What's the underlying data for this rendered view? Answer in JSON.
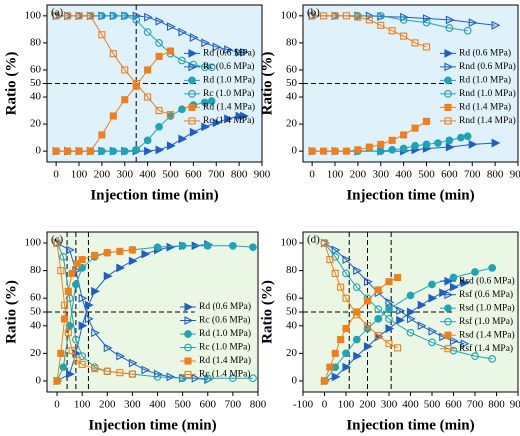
{
  "chart_data": [
    {
      "type": "line",
      "label": "(a)",
      "x_label": "Injection time (min)",
      "y_label": "Ratio (%)",
      "background": "#dff1fb",
      "xlim": [
        -40,
        900
      ],
      "ylim": [
        -8,
        108
      ],
      "xticks": [
        0,
        100,
        200,
        300,
        400,
        500,
        600,
        700,
        800,
        900
      ],
      "yticks": [
        0,
        20,
        40,
        50,
        60,
        80,
        100
      ],
      "vlines": [
        350
      ],
      "hline": 50,
      "legend": "center right",
      "series": [
        {
          "name": "Rd (0.6 MPa)",
          "color": "#1f5fc4",
          "marker": "triangle",
          "filled": true,
          "x": [
            0,
            50,
            100,
            150,
            200,
            250,
            300,
            350,
            400,
            450,
            500,
            550,
            600,
            650,
            700,
            750,
            800,
            820
          ],
          "values": [
            0,
            0,
            0,
            0,
            0,
            0,
            0,
            0,
            0,
            1,
            4,
            9,
            14,
            18,
            21,
            24,
            26,
            26
          ]
        },
        {
          "name": "Rc (0.6 MPa)",
          "color": "#1f5fc4",
          "marker": "triangle",
          "filled": false,
          "x": [
            0,
            50,
            100,
            150,
            200,
            250,
            300,
            350,
            400,
            450,
            500,
            550,
            600,
            650,
            700,
            750,
            800,
            820
          ],
          "values": [
            100,
            100,
            100,
            100,
            100,
            100,
            100,
            100,
            99,
            96,
            92,
            88,
            84,
            80,
            77,
            75,
            73,
            73
          ]
        },
        {
          "name": "Rd (1.0 MPa)",
          "color": "#1fa3b5",
          "marker": "circle",
          "filled": true,
          "x": [
            0,
            50,
            100,
            150,
            200,
            250,
            300,
            350,
            400,
            450,
            500,
            550,
            600,
            650,
            680
          ],
          "values": [
            0,
            0,
            0,
            0,
            0,
            0,
            0,
            1,
            8,
            18,
            26,
            31,
            34,
            36,
            37
          ]
        },
        {
          "name": "Rc (1.0 MPa)",
          "color": "#1fa3b5",
          "marker": "circle",
          "filled": false,
          "x": [
            0,
            50,
            100,
            150,
            200,
            250,
            300,
            350,
            400,
            450,
            500,
            550,
            600,
            650,
            680
          ],
          "values": [
            100,
            100,
            100,
            100,
            100,
            100,
            100,
            97,
            88,
            80,
            72,
            67,
            64,
            62,
            62
          ]
        },
        {
          "name": "Rd (1.4 MPa)",
          "color": "#f07f1a",
          "marker": "square",
          "filled": true,
          "x": [
            0,
            50,
            100,
            150,
            200,
            250,
            300,
            350,
            400,
            450,
            500
          ],
          "values": [
            0,
            0,
            0,
            0,
            12,
            26,
            38,
            48,
            60,
            70,
            74
          ]
        },
        {
          "name": "Rc (1.4 MPa)",
          "color": "#f07f1a",
          "marker": "square",
          "filled": false,
          "x": [
            0,
            50,
            100,
            150,
            200,
            250,
            300,
            350,
            400,
            450,
            500
          ],
          "values": [
            100,
            100,
            100,
            100,
            86,
            72,
            60,
            50,
            40,
            30,
            27
          ]
        }
      ]
    },
    {
      "type": "line",
      "label": "(b)",
      "x_label": "Injection time (min)",
      "y_label": "Ratio (%)",
      "background": "#dff1fb",
      "xlim": [
        -40,
        900
      ],
      "ylim": [
        -8,
        108
      ],
      "xticks": [
        0,
        100,
        200,
        300,
        400,
        500,
        600,
        700,
        800,
        900
      ],
      "yticks": [
        0,
        20,
        40,
        50,
        60,
        80,
        100
      ],
      "hline": 50,
      "legend": "center right",
      "series": [
        {
          "name": "Rd (0.6 MPa)",
          "color": "#1f5fc4",
          "marker": "triangle",
          "filled": true,
          "x": [
            0,
            100,
            200,
            300,
            400,
            450,
            500,
            600,
            700,
            800
          ],
          "values": [
            0,
            0,
            0,
            0,
            0,
            1,
            2,
            3,
            5,
            6
          ]
        },
        {
          "name": "Rnd (0.6 MPa)",
          "color": "#1f5fc4",
          "marker": "triangle",
          "filled": false,
          "x": [
            0,
            100,
            200,
            250,
            300,
            400,
            500,
            600,
            700,
            800
          ],
          "values": [
            100,
            100,
            100,
            100,
            99.5,
            99,
            98,
            97,
            95,
            93
          ]
        },
        {
          "name": "Rd (1.0 MPa)",
          "color": "#1fa3b5",
          "marker": "circle",
          "filled": true,
          "x": [
            0,
            100,
            200,
            300,
            350,
            400,
            450,
            500,
            550,
            600,
            650,
            680
          ],
          "values": [
            0,
            0,
            0,
            0,
            1,
            2,
            4,
            5,
            6,
            8,
            10,
            11
          ]
        },
        {
          "name": "Rnd (1.0 MPa)",
          "color": "#1fa3b5",
          "marker": "circle",
          "filled": false,
          "x": [
            0,
            100,
            200,
            300,
            400,
            500,
            600,
            680
          ],
          "values": [
            100,
            100,
            100,
            100,
            97,
            95,
            91,
            89
          ]
        },
        {
          "name": "Rd (1.4 MPa)",
          "color": "#f07f1a",
          "marker": "square",
          "filled": true,
          "x": [
            0,
            50,
            100,
            150,
            200,
            250,
            300,
            350,
            400,
            450,
            500
          ],
          "values": [
            0,
            0,
            0,
            0,
            1,
            3,
            5,
            8,
            12,
            17,
            22
          ]
        },
        {
          "name": "Rnd (1.4 MPa)",
          "color": "#f07f1a",
          "marker": "square",
          "filled": false,
          "x": [
            0,
            50,
            100,
            150,
            200,
            250,
            300,
            350,
            400,
            450,
            500
          ],
          "values": [
            100,
            100,
            100,
            100,
            99,
            97,
            93,
            89,
            85,
            80,
            77
          ]
        }
      ]
    },
    {
      "type": "line",
      "label": "(c)",
      "x_label": "Injection time (min)",
      "y_label": "Ratio (%)",
      "background": "#eaf7e4",
      "xlim": [
        -40,
        800
      ],
      "ylim": [
        -8,
        108
      ],
      "xticks": [
        0,
        100,
        200,
        300,
        400,
        500,
        600,
        700,
        800
      ],
      "yticks": [
        0,
        20,
        40,
        50,
        60,
        80,
        100
      ],
      "vlines": [
        40,
        75,
        125
      ],
      "hline": 50,
      "legend": "lower right",
      "series": [
        {
          "name": "Rd (0.6 MPa)",
          "color": "#1f5fc4",
          "marker": "triangle",
          "filled": true,
          "x": [
            0,
            50,
            75,
            100,
            125,
            150,
            200,
            250,
            300,
            350,
            400,
            450,
            500,
            550,
            600
          ],
          "values": [
            0,
            5,
            20,
            40,
            55,
            65,
            76,
            82,
            87,
            92,
            95,
            97,
            98,
            98,
            99
          ]
        },
        {
          "name": "Rc (0.6 MPa)",
          "color": "#1f5fc4",
          "marker": "triangle",
          "filled": false,
          "x": [
            0,
            50,
            75,
            100,
            125,
            150,
            200,
            250,
            300,
            350,
            400,
            450,
            500,
            550,
            600
          ],
          "values": [
            100,
            95,
            80,
            60,
            45,
            35,
            24,
            18,
            13,
            8,
            5,
            3,
            2,
            2,
            1
          ]
        },
        {
          "name": "Rd (1.0 MPa)",
          "color": "#1fa3b5",
          "marker": "circle",
          "filled": true,
          "x": [
            0,
            25,
            50,
            75,
            100,
            150,
            200,
            300,
            400,
            500,
            600,
            700,
            780
          ],
          "values": [
            0,
            10,
            40,
            70,
            82,
            90,
            93,
            95,
            97,
            98,
            98,
            98,
            97
          ]
        },
        {
          "name": "Rc (1.0 MPa)",
          "color": "#1fa3b5",
          "marker": "circle",
          "filled": false,
          "x": [
            0,
            25,
            50,
            75,
            100,
            150,
            200,
            300,
            400,
            500,
            600,
            700,
            780
          ],
          "values": [
            100,
            90,
            60,
            30,
            18,
            10,
            7,
            5,
            3,
            2,
            2,
            2,
            2
          ]
        },
        {
          "name": "Rd (1.4 MPa)",
          "color": "#f07f1a",
          "marker": "square",
          "filled": true,
          "x": [
            0,
            15,
            30,
            45,
            60,
            80,
            100,
            150,
            200,
            250,
            300
          ],
          "values": [
            0,
            20,
            45,
            65,
            78,
            85,
            88,
            91,
            93,
            94,
            95
          ]
        },
        {
          "name": "Rc (1.4 MPa)",
          "color": "#f07f1a",
          "marker": "square",
          "filled": false,
          "x": [
            0,
            15,
            30,
            45,
            60,
            80,
            100,
            150,
            200,
            250,
            300
          ],
          "values": [
            100,
            80,
            55,
            35,
            22,
            15,
            12,
            9,
            7,
            6,
            5
          ]
        }
      ]
    },
    {
      "type": "line",
      "label": "(d)",
      "x_label": "Injection time (min)",
      "y_label": "Ratio (%)",
      "background": "#eaf7e4",
      "xlim": [
        -100,
        900
      ],
      "ylim": [
        -8,
        108
      ],
      "xticks": [
        -100,
        0,
        100,
        200,
        300,
        400,
        500,
        600,
        700,
        800,
        900
      ],
      "yticks": [
        0,
        20,
        40,
        50,
        60,
        80,
        100
      ],
      "vlines": [
        115,
        200,
        310
      ],
      "hline": 50,
      "legend": "center right",
      "series": [
        {
          "name": "Rsd (0.6 MPa)",
          "color": "#1f5fc4",
          "marker": "triangle",
          "filled": true,
          "x": [
            0,
            50,
            100,
            150,
            200,
            250,
            300,
            350,
            400,
            450,
            500,
            550,
            600,
            650
          ],
          "values": [
            0,
            3,
            10,
            18,
            25,
            32,
            38,
            44,
            50,
            55,
            60,
            64,
            68,
            71
          ]
        },
        {
          "name": "Rsf (0.6 MPa)",
          "color": "#1f5fc4",
          "marker": "triangle",
          "filled": false,
          "x": [
            0,
            50,
            100,
            150,
            200,
            250,
            300,
            350,
            400,
            450,
            500,
            550,
            600,
            650
          ],
          "values": [
            100,
            95,
            88,
            80,
            72,
            64,
            57,
            51,
            45,
            40,
            36,
            32,
            29,
            27
          ]
        },
        {
          "name": "Rsd (1.0 MPa)",
          "color": "#1fa3b5",
          "marker": "circle",
          "filled": true,
          "x": [
            0,
            50,
            100,
            150,
            200,
            250,
            300,
            400,
            500,
            600,
            700,
            780
          ],
          "values": [
            0,
            10,
            20,
            30,
            38,
            45,
            52,
            62,
            70,
            75,
            79,
            82
          ]
        },
        {
          "name": "Rsf (1.0 MPa)",
          "color": "#1fa3b5",
          "marker": "circle",
          "filled": false,
          "x": [
            0,
            50,
            100,
            150,
            200,
            250,
            300,
            400,
            500,
            600,
            700,
            780
          ],
          "values": [
            100,
            90,
            78,
            68,
            60,
            52,
            45,
            35,
            28,
            22,
            18,
            16
          ]
        },
        {
          "name": "Rsd (1.4 MPa)",
          "color": "#f07f1a",
          "marker": "square",
          "filled": true,
          "x": [
            0,
            25,
            50,
            75,
            100,
            150,
            200,
            250,
            300,
            340
          ],
          "values": [
            0,
            10,
            20,
            30,
            38,
            50,
            58,
            66,
            72,
            75
          ]
        },
        {
          "name": "Rsf (1.4 MPa)",
          "color": "#f07f1a",
          "marker": "square",
          "filled": false,
          "x": [
            0,
            25,
            50,
            75,
            100,
            150,
            200,
            250,
            300,
            340
          ],
          "values": [
            100,
            88,
            78,
            68,
            60,
            48,
            40,
            33,
            27,
            24
          ]
        }
      ]
    }
  ]
}
